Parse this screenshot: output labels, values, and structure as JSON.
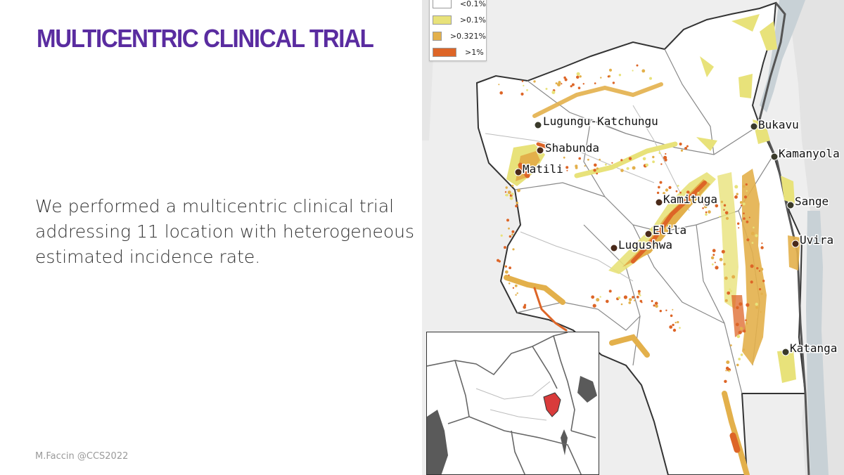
{
  "slide": {
    "title": "MULTICENTRIC CLINICAL TRIAL",
    "body": "We performed a multicentric clinical trial addressing 11 location with heterogeneous estimated incidence rate.",
    "footer": "M.Faccin @CCS2022"
  },
  "map": {
    "legend": [
      {
        "label": "<0.1%",
        "color": "#ffffff"
      },
      {
        "label": ">0.1%",
        "color": "#e8e27a"
      },
      {
        "label": ">0.321%",
        "color": "#e3b04b"
      },
      {
        "label": ">1%",
        "color": "#dd6527"
      }
    ],
    "locations": [
      {
        "name": "Lugungu-Katchungu"
      },
      {
        "name": "Shabunda"
      },
      {
        "name": "Matili"
      },
      {
        "name": "Bukavu"
      },
      {
        "name": "Kamanyola"
      },
      {
        "name": "Kamituga"
      },
      {
        "name": "Sange"
      },
      {
        "name": "Elila"
      },
      {
        "name": "Lugushwa"
      },
      {
        "name": "Uvira"
      },
      {
        "name": "Katanga"
      }
    ]
  },
  "colors": {
    "title": "#5a2ca0",
    "body_text": "#333333",
    "highlight_region": "#d93b3b",
    "lake": "#5a5a5a"
  }
}
